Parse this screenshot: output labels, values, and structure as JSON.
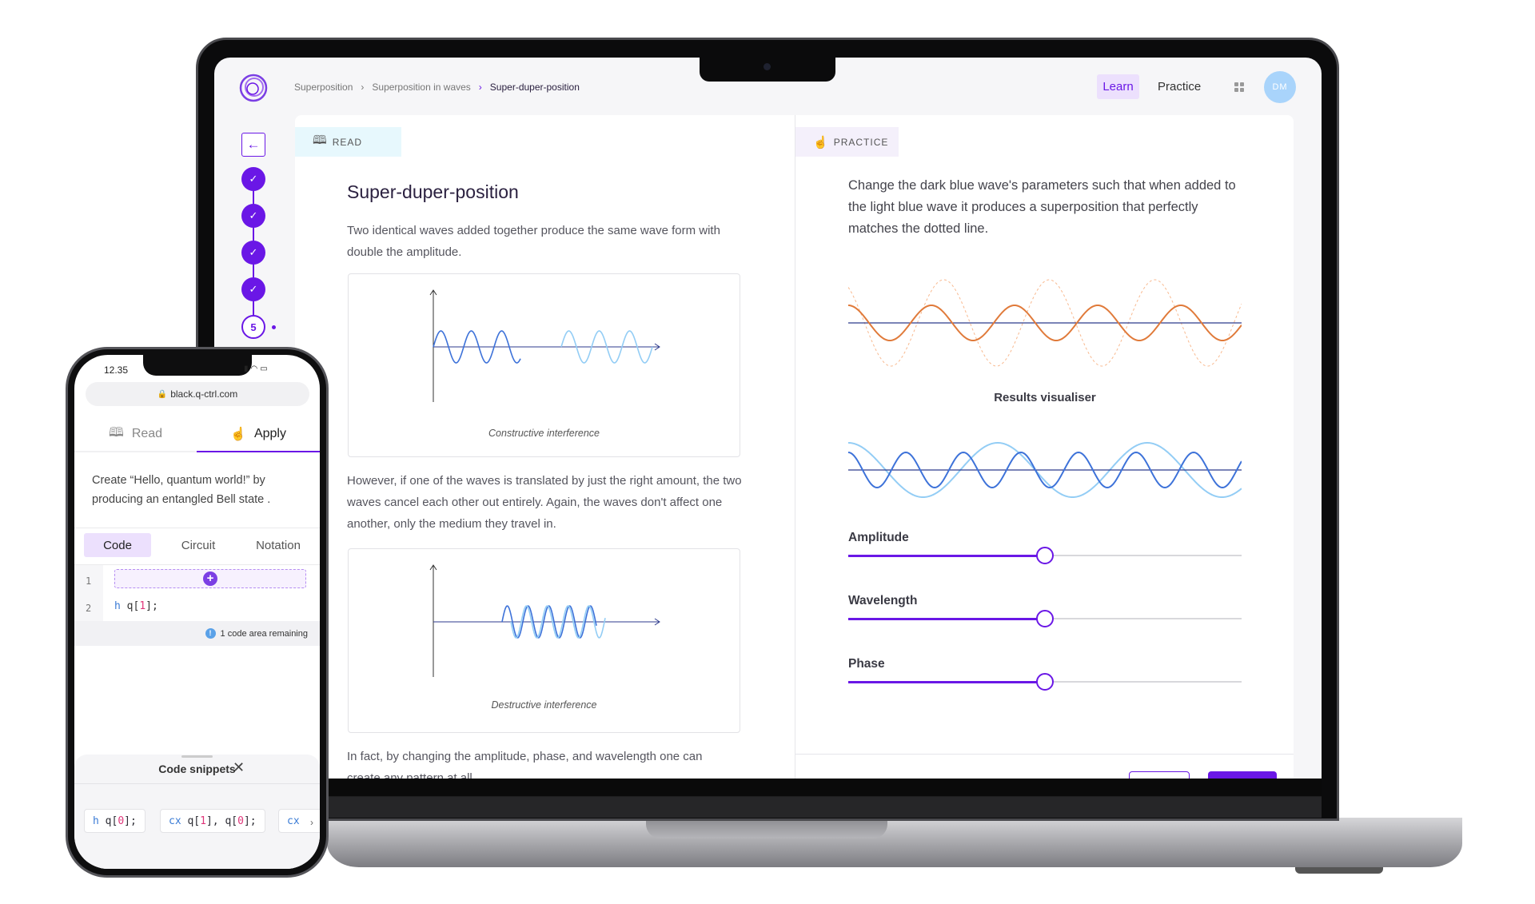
{
  "nav": {
    "breadcrumb": [
      "Superposition",
      "Superposition in waves",
      "Super-duper-position"
    ],
    "learn": "Learn",
    "practice": "Practice",
    "avatar": "DM"
  },
  "sidebar": {
    "current_step": "5",
    "completed_steps": 4
  },
  "read": {
    "tab": "READ",
    "title": "Super-duper-position",
    "para1": "Two identical waves added together produce the same wave form with double the amplitude.",
    "fig1_caption": "Constructive interference",
    "para2": "However, if one of the waves is translated by just the right amount, the two waves cancel each other out entirely. Again, the waves don't affect one another, only the medium they travel in.",
    "fig2_caption": "Destructive interference",
    "para3": "In fact, by changing the amplitude, phase, and wavelength one can create any pattern at all."
  },
  "practice": {
    "tab": "PRACTICE",
    "instructions": "Change the dark blue wave's parameters such that when added to the light blue wave it produces a superposition that perfectly matches the dotted line.",
    "results_label": "Results visualiser",
    "sliders": [
      {
        "label": "Amplitude",
        "value": 0.5
      },
      {
        "label": "Wavelength",
        "value": 0.5
      },
      {
        "label": "Phase",
        "value": 0.5
      }
    ]
  },
  "colors": {
    "accent": "#6a17e6",
    "orange": "#e07a3a",
    "dark_blue": "#3d72d9",
    "light_blue": "#93cdf5",
    "axis": "#2c3a8c"
  },
  "phone": {
    "time": "12.35",
    "url": "black.q-ctrl.com",
    "tabs": [
      "Read",
      "Apply"
    ],
    "active_tab": "Apply",
    "task": "Create “Hello, quantum world!” by producing an entangled Bell state .",
    "code_tabs": [
      "Code",
      "Circuit",
      "Notation"
    ],
    "code_lines": [
      "1",
      "2"
    ],
    "code_line2": {
      "kw": "h",
      "pre": "q[",
      "num": "1",
      "post": "];"
    },
    "remaining": "1 code area remaining",
    "snippets_title": "Code snippets",
    "snippets": [
      {
        "kw": "h",
        "text": "q[",
        "n1": "0",
        "end": "];"
      },
      {
        "kw": "cx",
        "text": "q[",
        "n1": "1",
        "mid": "], q[",
        "n2": "0",
        "end": "];"
      },
      {
        "kw": "cx"
      }
    ]
  }
}
